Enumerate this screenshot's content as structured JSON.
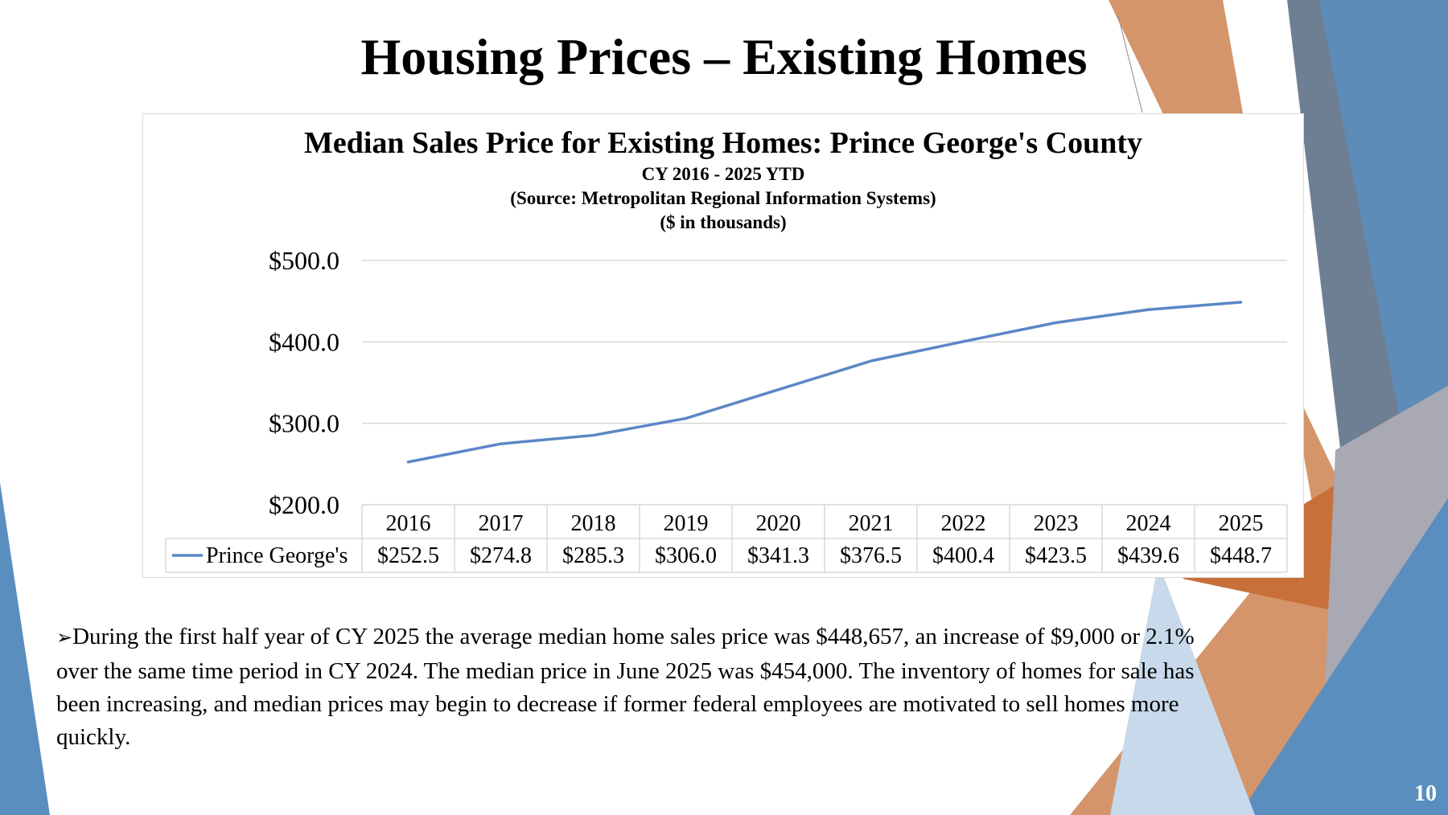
{
  "slide": {
    "title": "Housing Prices – Existing Homes",
    "page_number": "10",
    "bullet_symbol": "➢",
    "body_text": "During the first half year of CY 2025 the average median home sales price was $448,657, an increase of $9,000 or 2.1% over the same time period in CY 2024. The median price in June 2025 was $454,000. The inventory of homes for sale has been increasing, and median prices may begin to decrease if former federal employees are motivated to sell homes more quickly."
  },
  "chart_data": {
    "type": "line",
    "title": "Median Sales Price for Existing Homes: Prince George's County",
    "subtitle_lines": [
      "CY 2016 - 2025 YTD",
      "(Source: Metropolitan Regional Information Systems)",
      "($ in thousands)"
    ],
    "categories": [
      "2016",
      "2017",
      "2018",
      "2019",
      "2020",
      "2021",
      "2022",
      "2023",
      "2024",
      "2025"
    ],
    "series": [
      {
        "name": "Prince George's",
        "values": [
          252.5,
          274.8,
          285.3,
          306.0,
          341.3,
          376.5,
          400.4,
          423.5,
          439.6,
          448.7
        ],
        "labels": [
          "$252.5",
          "$274.8",
          "$285.3",
          "$306.0",
          "$341.3",
          "$376.5",
          "$400.4",
          "$423.5",
          "$439.6",
          "$448.7"
        ],
        "color": "#5b87c5"
      }
    ],
    "ylim": [
      200,
      500
    ],
    "yticks": [
      200,
      300,
      400,
      500
    ],
    "ytick_labels": [
      "$200.0",
      "$300.0",
      "$400.0",
      "$500.0"
    ],
    "grid": true,
    "legend": "data-table"
  },
  "colors": {
    "line": "#5b87c5",
    "orange": "#d08a5a",
    "orange_dark": "#c8703a",
    "blue": "#5a8ebf",
    "blue_light": "#8db3d6",
    "slate": "#6f7f93"
  }
}
